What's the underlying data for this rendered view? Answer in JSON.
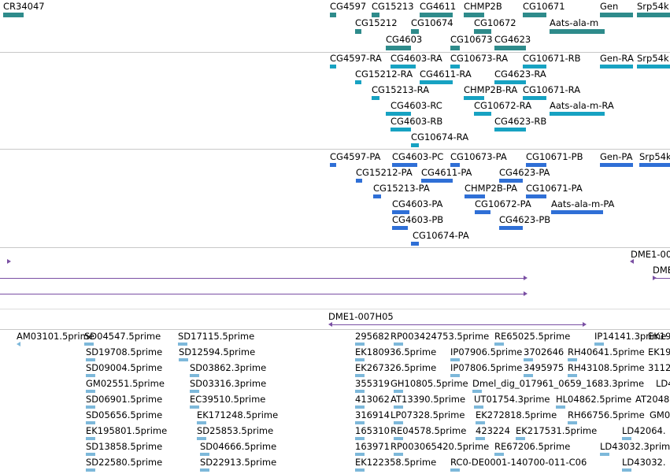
{
  "tracks": {
    "genes": {
      "color": "#2e8b8b",
      "labels": [
        "CR34047",
        "CG4597",
        "CG15213",
        "CG4611",
        "CHMP2B",
        "CG10671",
        "Gen",
        "Srp54k",
        "CG15212",
        "CG10674",
        "CG10672",
        "Aats-ala-m",
        "CG4603",
        "CG10673",
        "CG4623"
      ]
    },
    "transcripts": {
      "color": "#17a2c2",
      "labels": [
        "CG4597-RA",
        "CG4603-RA",
        "CG10673-RA",
        "CG10671-RB",
        "Gen-RA",
        "Srp54k",
        "CG15212-RA",
        "CG4611-RA",
        "CG4623-RA",
        "CG15213-RA",
        "CHMP2B-RA",
        "CG10671-RA",
        "CG4603-RC",
        "CG10672-RA",
        "Aats-ala-m-RA",
        "CG4603-RB",
        "CG4623-RB",
        "CG10674-RA"
      ]
    },
    "proteins": {
      "color": "#2f6fd6",
      "labels": [
        "CG4597-PA",
        "CG4603-PC",
        "CG10673-PA",
        "CG10671-PB",
        "Gen-PA",
        "Srp54k",
        "CG15212-PA",
        "CG4611-PA",
        "CG4623-PA",
        "CG15213-PA",
        "CHMP2B-PA",
        "CG10671-PA",
        "CG4603-PA",
        "CG10672-PA",
        "Aats-ala-m-PA",
        "CG4603-PB",
        "CG4623-PB",
        "CG10674-PA"
      ]
    },
    "clones": {
      "color": "#7a4fa3",
      "labels": [
        "DME1-00",
        "DME",
        "DME1-007H05"
      ]
    },
    "ests": {
      "color": "#7db8da",
      "labels": [
        "AM03101.5prime",
        "SD04547.5prime",
        "SD17115.5prime",
        "SD19708.5prime",
        "SD12594.5prime",
        "SD09004.5prime",
        "SD03862.3prime",
        "GM02551.5prime",
        "SD03316.3prime",
        "SD06901.5prime",
        "EC39510.5prime",
        "SD05656.5prime",
        "EK171248.5prime",
        "EK195801.5prime",
        "SD25853.5prime",
        "SD13858.5prime",
        "SD04666.5prime",
        "SD22580.5prime",
        "SD22913.5prime",
        "295682",
        "RP003424753.5prime",
        "RE65025.5prime",
        "IP14141.3prime",
        "EK19",
        "EK180936.5prime",
        "IP07906.5prime",
        "3702646",
        "RH40641.5prime",
        "EK267326.5prime",
        "IP07806.5prime",
        "3495975",
        "RH43108.5prime",
        "3112",
        "355319",
        "GH10805.5prime",
        "Dmel_dig_017961_0659_1683.3prime",
        "LD4",
        "413062",
        "AT13390.5prime",
        "UT01754.3prime",
        "HL04862.5prime",
        "AT2048",
        "316914",
        "LP07328.5prime",
        "EK272818.5prime",
        "RH66756.5prime",
        "GM0",
        "165310",
        "RE04578.5prime",
        "423224",
        "EK217531.5prime",
        "LD42064.",
        "163971",
        "RP003065420.5prime",
        "RE67206.5prime",
        "LD43032.3prim",
        "EK122358.5prime",
        "RC0-DE0001-140700-011-C06",
        "LD43032."
      ]
    }
  }
}
